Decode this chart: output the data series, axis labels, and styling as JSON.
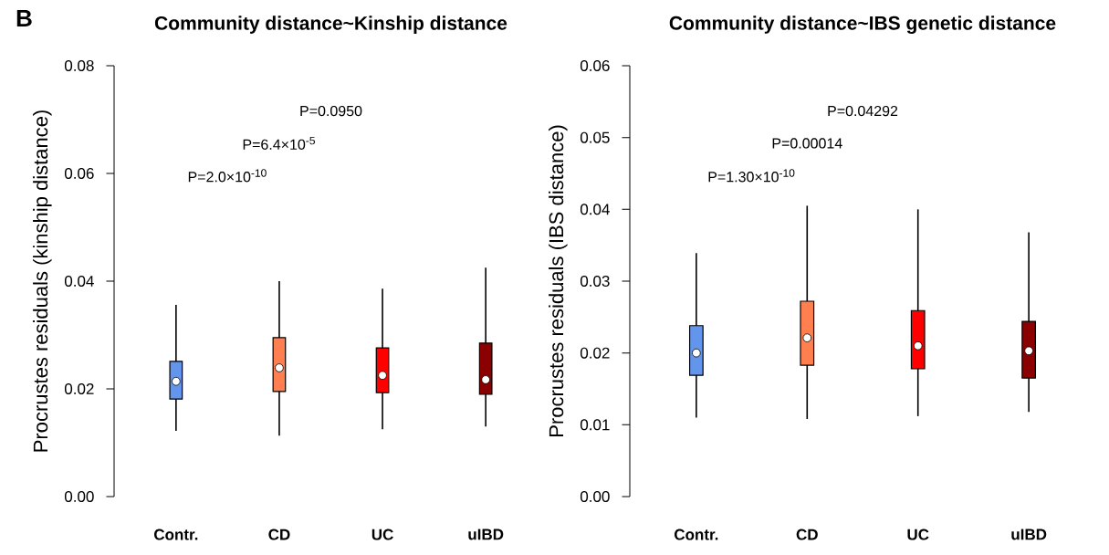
{
  "chart_data": [
    {
      "type": "box",
      "title": "Community distance~Kinship distance",
      "ylabel": "Procrustes residuals (kinship distance)",
      "categories": [
        "Contr.",
        "CD",
        "UC",
        "uIBD"
      ],
      "colors": [
        "#6495ed",
        "#ff7f50",
        "#ff0000",
        "#8b0000"
      ],
      "boxes": [
        {
          "low": 0.0122,
          "q1": 0.0181,
          "median": 0.0214,
          "q3": 0.0251,
          "high": 0.0356
        },
        {
          "low": 0.0113,
          "q1": 0.0195,
          "median": 0.0239,
          "q3": 0.0295,
          "high": 0.04
        },
        {
          "low": 0.0125,
          "q1": 0.0193,
          "median": 0.0225,
          "q3": 0.0276,
          "high": 0.0386
        },
        {
          "low": 0.013,
          "q1": 0.019,
          "median": 0.0217,
          "q3": 0.0285,
          "high": 0.0425
        }
      ],
      "ylim": [
        0,
        0.08
      ],
      "yticks": [
        {
          "value": 0,
          "label": "0.00"
        },
        {
          "value": 0.02,
          "label": "0.02"
        },
        {
          "value": 0.04,
          "label": "0.04"
        },
        {
          "value": 0.06,
          "label": "0.06"
        },
        {
          "value": 0.08,
          "label": "0.08"
        }
      ],
      "annotations": [
        "B",
        "P=0.0950",
        "P=6.4×10$^{-5}$",
        "P=2.0×10$^{-10}$"
      ]
    },
    {
      "type": "box",
      "title": "Community distance~IBS genetic distance",
      "ylabel": "Procrustes residuals (IBS distance)",
      "categories": [
        "Contr.",
        "CD",
        "UC",
        "uIBD"
      ],
      "colors": [
        "#6495ed",
        "#ff7f50",
        "#ff0000",
        "#8b0000"
      ],
      "boxes": [
        {
          "low": 0.011,
          "q1": 0.0169,
          "median": 0.02,
          "q3": 0.0238,
          "high": 0.0339
        },
        {
          "low": 0.0108,
          "q1": 0.0183,
          "median": 0.0221,
          "q3": 0.0272,
          "high": 0.0405
        },
        {
          "low": 0.0112,
          "q1": 0.0178,
          "median": 0.021,
          "q3": 0.0259,
          "high": 0.04
        },
        {
          "low": 0.0118,
          "q1": 0.0165,
          "median": 0.0203,
          "q3": 0.0244,
          "high": 0.0368
        }
      ],
      "ylim": [
        0,
        0.06
      ],
      "yticks": [
        {
          "value": 0,
          "label": "0.00"
        },
        {
          "value": 0.01,
          "label": "0.01"
        },
        {
          "value": 0.02,
          "label": "0.02"
        },
        {
          "value": 0.03,
          "label": "0.03"
        },
        {
          "value": 0.04,
          "label": "0.04"
        },
        {
          "value": 0.05,
          "label": "0.05"
        },
        {
          "value": 0.06,
          "label": "0.06"
        }
      ],
      "annotations": [
        "P=0.04292",
        "P=0.00014",
        "P=1.30×10$^{-10}$"
      ]
    }
  ]
}
